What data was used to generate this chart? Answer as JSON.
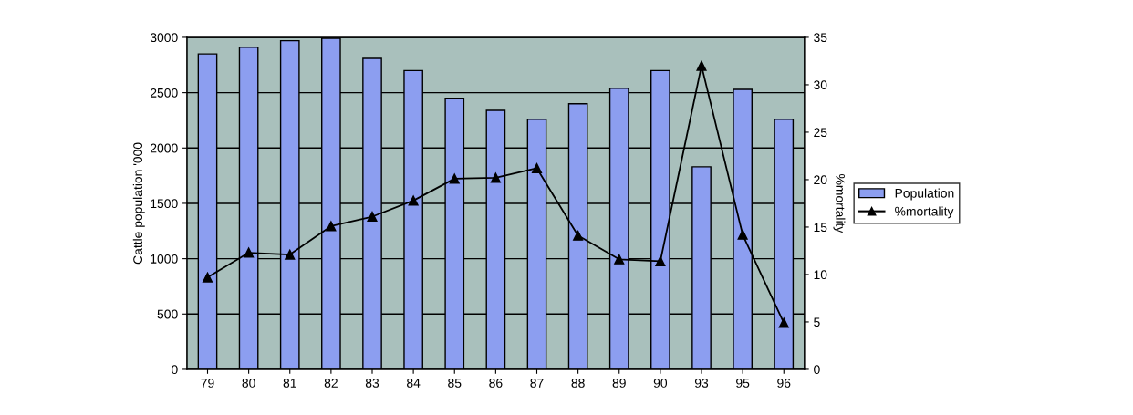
{
  "chart_data": {
    "type": "bar",
    "ylabel": "Cattle population '000",
    "y2label": "%mortality",
    "categories": [
      "79",
      "80",
      "81",
      "82",
      "83",
      "84",
      "85",
      "86",
      "87",
      "88",
      "89",
      "90",
      "93",
      "95",
      "96"
    ],
    "series": [
      {
        "name": "Population",
        "color": "#8c9ef0",
        "values": [
          2850,
          2910,
          2970,
          2990,
          2810,
          2700,
          2450,
          2340,
          2260,
          2400,
          2540,
          2700,
          1830,
          2530,
          2260
        ]
      },
      {
        "name": "%mortality",
        "type": "line",
        "axis": "y2",
        "color": "#000000",
        "marker": "triangle",
        "values": [
          9.7,
          12.3,
          12.1,
          15.1,
          16.1,
          17.8,
          20.1,
          20.2,
          21.2,
          14.1,
          11.6,
          11.4,
          32.0,
          14.2,
          4.9
        ]
      }
    ],
    "ylim": [
      0,
      3000
    ],
    "yticks": [
      0,
      500,
      1000,
      1500,
      2000,
      2500,
      3000
    ],
    "y2lim": [
      0,
      35
    ],
    "y2ticks": [
      0,
      5,
      10,
      15,
      20,
      25,
      30,
      35
    ],
    "grid": "y",
    "legend": "right"
  }
}
